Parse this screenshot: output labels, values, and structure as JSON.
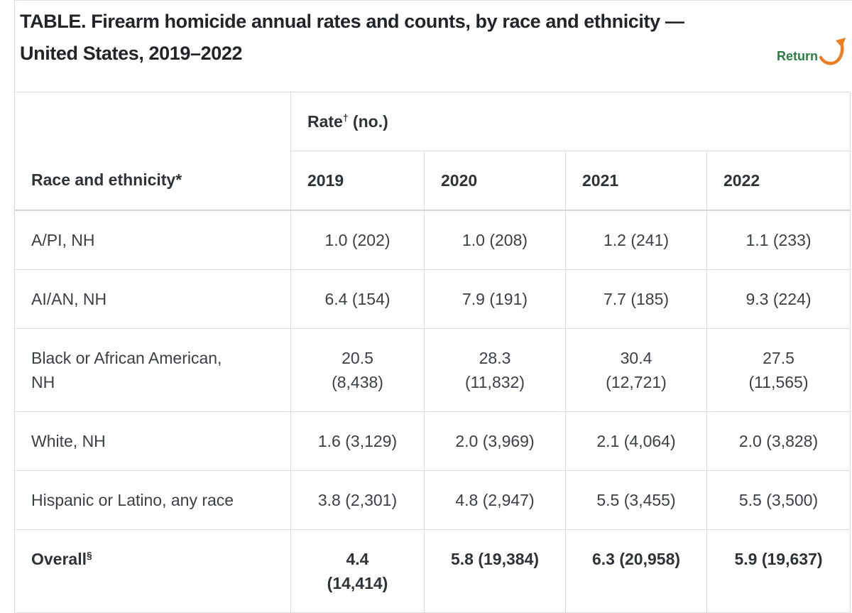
{
  "header": {
    "title": "TABLE. Firearm homicide annual rates and counts, by race and ethnicity —\nUnited States, 2019–2022",
    "return_label": "Return"
  },
  "colors": {
    "return_green": "#2b7d44",
    "arrow_orange": "#ed7d23",
    "border_gray": "#d9dde2",
    "title_text": "#212529",
    "body_text": "#3b4046"
  },
  "table": {
    "corner_header": "Race and ethnicity*",
    "group_header": {
      "prefix": "Rate",
      "sup": "†",
      "suffix": " (no.)"
    },
    "years": [
      "2019",
      "2020",
      "2021",
      "2022"
    ],
    "rows": [
      {
        "label": "A/PI, NH",
        "label_sup": "",
        "bold": false,
        "values": [
          "1.0 (202)",
          "1.0 (208)",
          "1.2 (241)",
          "1.1 (233)"
        ]
      },
      {
        "label": "AI/AN, NH",
        "label_sup": "",
        "bold": false,
        "values": [
          "6.4 (154)",
          "7.9 (191)",
          "7.7 (185)",
          "9.3 (224)"
        ]
      },
      {
        "label": "Black or African American,\nNH",
        "label_sup": "",
        "bold": false,
        "values": [
          "20.5\n(8,438)",
          "28.3\n(11,832)",
          "30.4\n(12,721)",
          "27.5\n(11,565)"
        ]
      },
      {
        "label": "White, NH",
        "label_sup": "",
        "bold": false,
        "values": [
          "1.6 (3,129)",
          "2.0 (3,969)",
          "2.1 (4,064)",
          "2.0 (3,828)"
        ]
      },
      {
        "label": "Hispanic or Latino, any race",
        "label_sup": "",
        "bold": false,
        "values": [
          "3.8 (2,301)",
          "4.8 (2,947)",
          "5.5 (3,455)",
          "5.5 (3,500)"
        ]
      },
      {
        "label": "Overall",
        "label_sup": "§",
        "bold": true,
        "values": [
          "4.4\n(14,414)",
          "5.8 (19,384)",
          "6.3 (20,958)",
          "5.9 (19,637)"
        ]
      }
    ]
  }
}
